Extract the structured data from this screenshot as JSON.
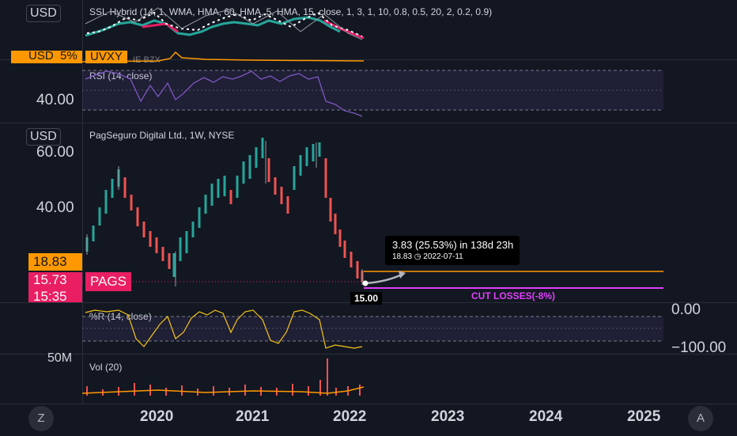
{
  "top": {
    "currency": "USD",
    "ssl_legend": "SSL Hybrid (14, 1, WMA, HMA, 60, HMA, 5, HMA, 15, close, 1, 3, 1, 10, 0.8, 0.5, 20, 2, 0.2, 0.9)",
    "overlay_orange_label": "USD",
    "overlay_symbol": "UVXY",
    "overlay_left_fragment": "5%",
    "overlay_legend_fragment": "IE BZX"
  },
  "rsi": {
    "legend": "RSI (14, close)",
    "axis_label": "40.00"
  },
  "main": {
    "currency": "USD",
    "legend": "PagSeguro Digital Ltd., 1W, NYSE",
    "axis_labels": [
      "60.00",
      "40.00"
    ],
    "price_orange": "18.83",
    "price_pink": "15.73",
    "symbol_tag": "PAGS",
    "countdown": "15:35",
    "measure_main": "3.83 (25.53%) in 138d 23h",
    "measure_sub": "18.83 ◷ 2022-07-11",
    "start_price": "15.00",
    "cut_losses": "CUT LOSSES(-8%)",
    "colors": {
      "orange": "#ff9800",
      "pink": "#e91e63",
      "magenta": "#e040fb"
    }
  },
  "wr": {
    "legend": "%R (14, close)",
    "axis_top": "0.00",
    "axis_bottom": "−100.00"
  },
  "vol": {
    "legend": "Vol (20)",
    "axis_label": "50M"
  },
  "xaxis": {
    "years": [
      "2020",
      "2021",
      "2022",
      "2023",
      "2024",
      "2025"
    ]
  },
  "buttons": {
    "timezone": "Z",
    "auto": "A"
  }
}
